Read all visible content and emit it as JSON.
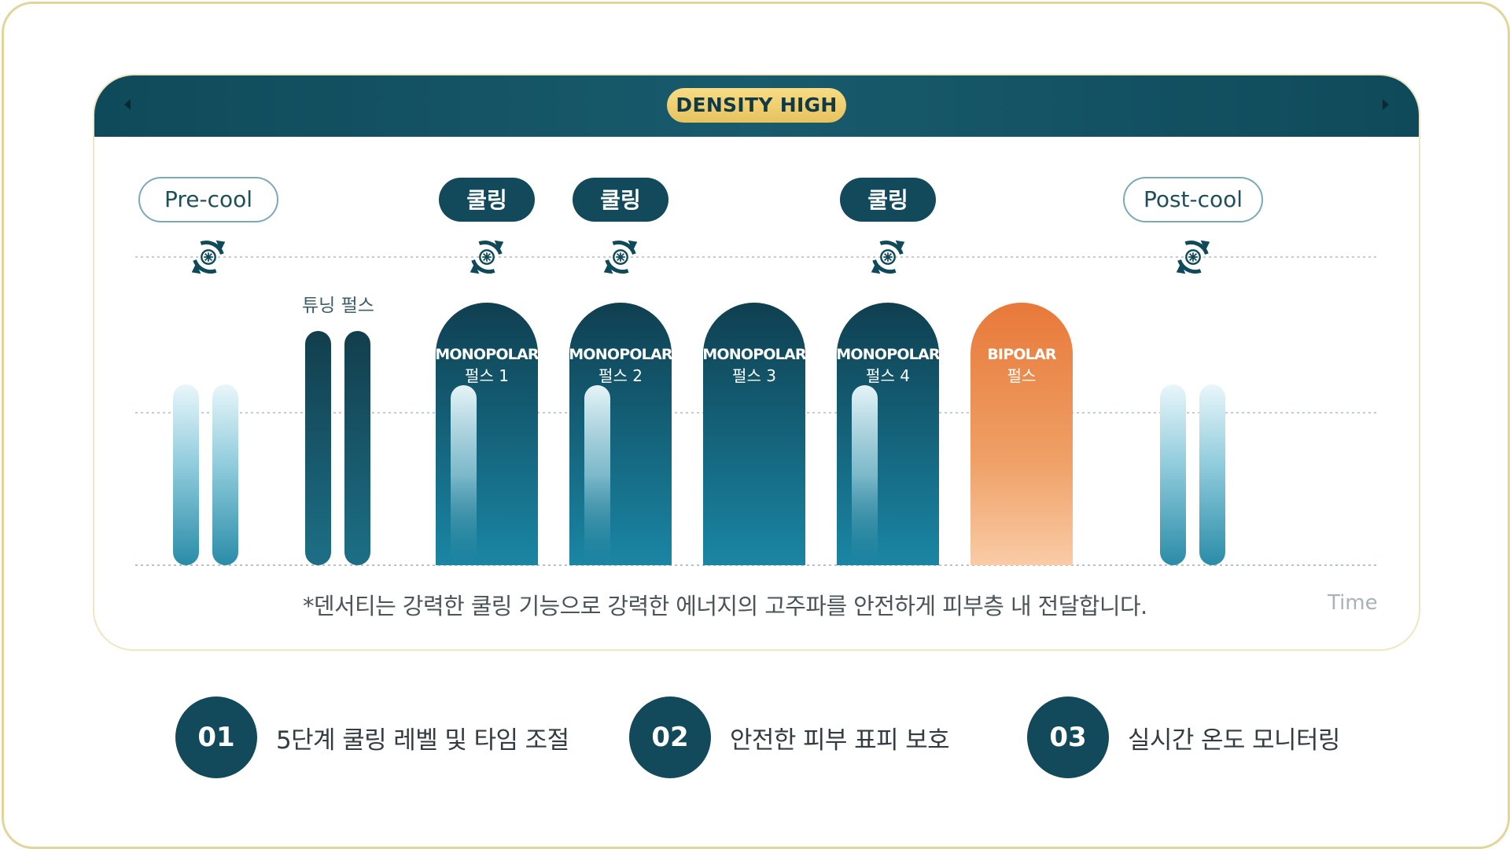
{
  "header": {
    "badge": "DENSITY HIGH"
  },
  "phase_labels": {
    "precool": "Pre-cool",
    "postcool": "Post-cool",
    "cooling": "쿨링"
  },
  "tuning_label": "튜닝 펄스",
  "pulses": [
    {
      "line1": "MONOPOLAR",
      "line2": "펄스 1",
      "type": "monopolar",
      "cooling": true
    },
    {
      "line1": "MONOPOLAR",
      "line2": "펄스 2",
      "type": "monopolar",
      "cooling": true
    },
    {
      "line1": "MONOPOLAR",
      "line2": "펄스 3",
      "type": "monopolar",
      "cooling": false
    },
    {
      "line1": "MONOPOLAR",
      "line2": "펄스 4",
      "type": "monopolar",
      "cooling": true
    },
    {
      "line1": "BIPOLAR",
      "line2": "펄스",
      "type": "bipolar",
      "cooling": false
    }
  ],
  "note": "*덴서티는 강력한 쿨링 기능으로 강력한 에너지의 고주파를 안전하게 피부층 내 전달합니다.",
  "axis": {
    "time": "Time"
  },
  "features": [
    {
      "num": "01",
      "label": "5단계 쿨링 레벨 및 타임 조절"
    },
    {
      "num": "02",
      "label": "안전한 피부 표피 보호"
    },
    {
      "num": "03",
      "label": "실시간 온도 모니터링"
    }
  ],
  "colors": {
    "dark_teal": "#124a5b",
    "teal_bottom": "#1a85a3",
    "bipolar_top": "#e8793a",
    "bipolar_bottom": "#f8c39b",
    "gold": "#e7c25f",
    "frame": "#e3d49a"
  },
  "icons": {
    "cooling": "snowflake-cycle-icon"
  }
}
